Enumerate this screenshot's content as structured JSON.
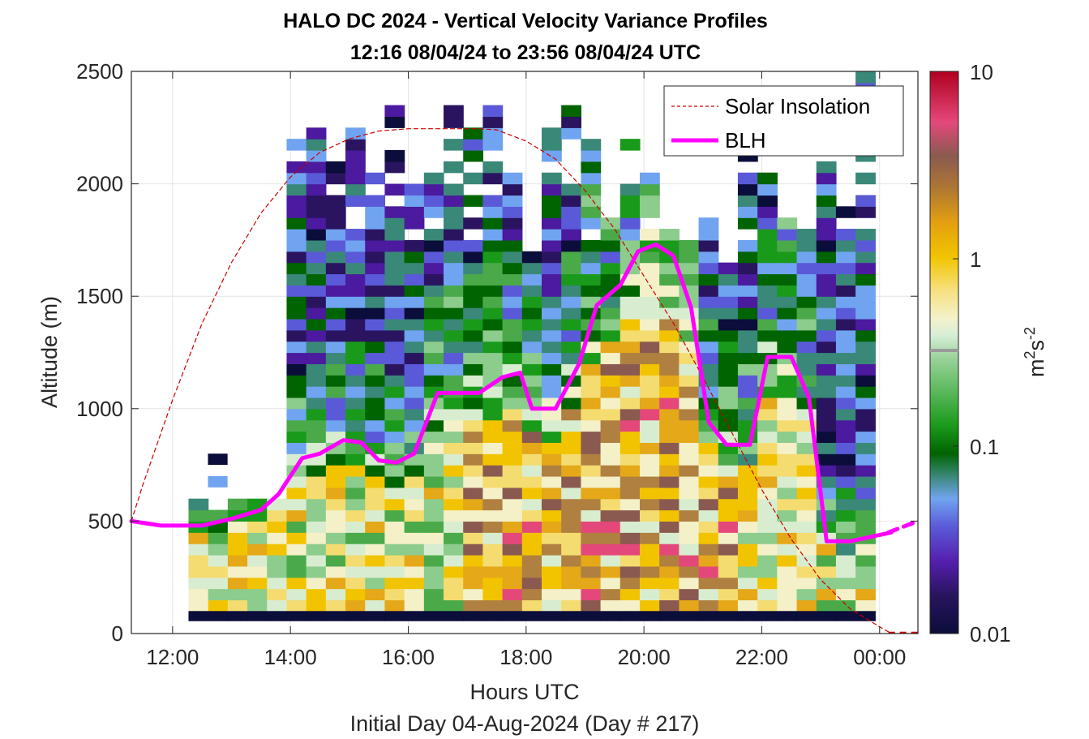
{
  "chart_data": {
    "type": "heatmap",
    "title": "HALO DC 2024 - Vertical Velocity Variance Profiles",
    "subtitle": "12:16 08/04/24 to 23:56 08/04/24  UTC",
    "xlabel": "Hours UTC",
    "xlabel2": "Initial Day 04-Aug-2024 (Day # 217)",
    "ylabel": "Altitude (m)",
    "xlim": [
      11.3,
      24.65
    ],
    "ylim": [
      0,
      2500
    ],
    "x_ticks": [
      12,
      14,
      16,
      18,
      20,
      22,
      24
    ],
    "x_tick_labels": [
      "12:00",
      "14:00",
      "16:00",
      "18:00",
      "20:00",
      "22:00",
      "00:00"
    ],
    "y_ticks": [
      0,
      500,
      1000,
      1500,
      2000,
      2500
    ],
    "y_tick_labels": [
      "0",
      "500",
      "1000",
      "1500",
      "2000",
      "2500"
    ],
    "grid": true,
    "legend_position": "top-right",
    "colorbar": {
      "label_base": "m",
      "label_sup1": "2",
      "label_mid": "s",
      "label_sup2": "-2",
      "scale": "log",
      "range": [
        0.01,
        10
      ],
      "ticks": [
        0.01,
        0.1,
        1,
        10
      ],
      "tick_labels": [
        "0.01",
        "0.1",
        "1",
        "10"
      ]
    },
    "heatmap": {
      "time_start": 12.27,
      "time_end": 23.93,
      "column_width_hours": 0.333,
      "bin_height_m": 50,
      "alt_max": 2500
    },
    "series": [
      {
        "name": "Solar Insolation",
        "style": "dashed",
        "color": "#cc0000",
        "x": [
          11.3,
          11.5,
          12.0,
          12.5,
          13.0,
          13.5,
          14.0,
          14.5,
          15.0,
          15.5,
          16.0,
          16.5,
          17.0,
          17.2,
          17.5,
          18.0,
          18.5,
          19.0,
          19.5,
          20.0,
          20.5,
          21.0,
          21.5,
          22.0,
          22.5,
          23.0,
          23.5,
          24.0,
          24.2
        ],
        "values": [
          500,
          665,
          1040,
          1380,
          1650,
          1870,
          2030,
          2140,
          2200,
          2235,
          2245,
          2245,
          2245,
          2245,
          2240,
          2190,
          2110,
          1970,
          1800,
          1590,
          1380,
          1140,
          890,
          640,
          420,
          240,
          110,
          30,
          0
        ]
      },
      {
        "name": "BLH",
        "style": "solid",
        "color": "#ff00ff",
        "x": [
          11.3,
          11.8,
          12.5,
          13.0,
          13.5,
          13.8,
          14.2,
          14.5,
          14.9,
          15.2,
          15.5,
          15.8,
          16.1,
          16.5,
          16.8,
          17.2,
          17.6,
          17.9,
          18.1,
          18.5,
          18.9,
          19.2,
          19.6,
          19.9,
          20.2,
          20.5,
          20.8,
          21.1,
          21.4,
          21.8,
          22.1,
          22.5,
          22.8,
          23.1,
          23.5,
          24.2
        ],
        "values": [
          500,
          480,
          480,
          510,
          550,
          620,
          780,
          800,
          860,
          850,
          770,
          760,
          800,
          1070,
          1070,
          1070,
          1140,
          1160,
          1000,
          1000,
          1200,
          1460,
          1550,
          1700,
          1730,
          1680,
          1450,
          940,
          840,
          840,
          1230,
          1230,
          1050,
          410,
          410,
          450
        ]
      },
      {
        "name": "",
        "style": "dashed",
        "color": "#ff00ff",
        "x": [
          24.15,
          24.65
        ],
        "values": [
          450,
          500
        ]
      }
    ]
  }
}
